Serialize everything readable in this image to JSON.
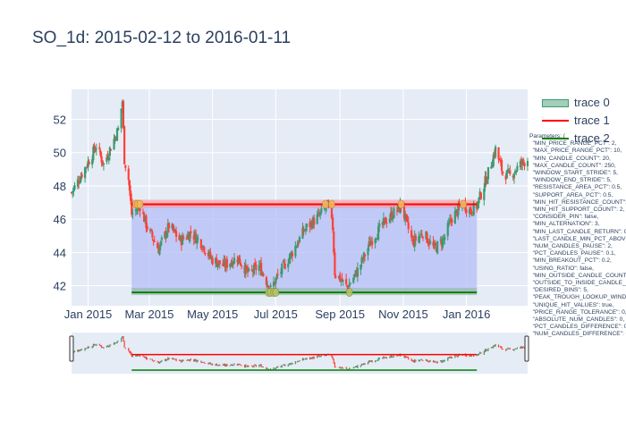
{
  "chart_data": {
    "type": "candlestick",
    "title": "SO_1d: 2015-02-12 to 2016-01-11",
    "y_tick_labels": [
      "42",
      "44",
      "46",
      "48",
      "50",
      "52"
    ],
    "y_ticks": [
      42,
      44,
      46,
      48,
      50,
      52
    ],
    "ylim": [
      40.8,
      53.8
    ],
    "x_tick_labels": [
      "Jan 2015",
      "Mar 2015",
      "May 2015",
      "Jul 2015",
      "Sep 2015",
      "Nov 2015",
      "Jan 2016"
    ],
    "x_ticks": [
      "2015-01-01",
      "2015-03-01",
      "2015-05-01",
      "2015-07-01",
      "2015-09-01",
      "2015-11-01",
      "2016-01-01"
    ],
    "xlim": [
      "2014-12-16",
      "2016-02-29"
    ],
    "grid": true,
    "legend_position": "top-right",
    "legend": [
      {
        "name": "trace 0",
        "color": "#3d9970"
      },
      {
        "name": "trace 1",
        "color": "#ff0000"
      },
      {
        "name": "trace 2",
        "color": "#008000"
      }
    ],
    "colors": {
      "increasing": "#3d9970",
      "decreasing": "#ff4136",
      "background": "#e5ecf6",
      "resistance": "#ff0000",
      "support": "#008000",
      "area": "#b4bef5",
      "marker": "#f2b76b"
    },
    "resistance_level": 46.9,
    "support_level": 41.6,
    "range_start": "2015-02-12",
    "range_end": "2016-01-11",
    "resistance_hits": [
      "2015-02-16",
      "2015-02-18",
      "2015-02-20",
      "2015-08-18",
      "2015-08-24",
      "2015-10-30",
      "2015-12-29"
    ],
    "support_hits": [
      "2015-06-24",
      "2015-06-26",
      "2015-06-29",
      "2015-07-01",
      "2015-09-10"
    ],
    "close_path": [
      [
        "2014-12-16",
        47.6
      ],
      [
        "2014-12-30",
        49.2
      ],
      [
        "2015-01-09",
        50.4
      ],
      [
        "2015-01-16",
        49.3
      ],
      [
        "2015-01-30",
        51.4
      ],
      [
        "2015-02-03",
        53.1
      ],
      [
        "2015-02-05",
        49.6
      ],
      [
        "2015-02-09",
        48.4
      ],
      [
        "2015-02-12",
        46.3
      ],
      [
        "2015-02-20",
        46.8
      ],
      [
        "2015-02-27",
        45.5
      ],
      [
        "2015-03-10",
        44.2
      ],
      [
        "2015-03-20",
        45.6
      ],
      [
        "2015-03-31",
        44.7
      ],
      [
        "2015-04-10",
        45.2
      ],
      [
        "2015-04-20",
        44.6
      ],
      [
        "2015-04-30",
        43.6
      ],
      [
        "2015-05-12",
        43.2
      ],
      [
        "2015-05-25",
        43.7
      ],
      [
        "2015-06-05",
        42.7
      ],
      [
        "2015-06-15",
        43.2
      ],
      [
        "2015-06-26",
        41.8
      ],
      [
        "2015-07-03",
        42.6
      ],
      [
        "2015-07-15",
        43.8
      ],
      [
        "2015-07-29",
        45.4
      ],
      [
        "2015-08-12",
        46.2
      ],
      [
        "2015-08-20",
        46.8
      ],
      [
        "2015-08-25",
        45.5
      ],
      [
        "2015-08-27",
        42.8
      ],
      [
        "2015-09-08",
        41.9
      ],
      [
        "2015-09-18",
        42.9
      ],
      [
        "2015-10-01",
        44.7
      ],
      [
        "2015-10-15",
        45.9
      ],
      [
        "2015-10-30",
        46.8
      ],
      [
        "2015-11-10",
        44.6
      ],
      [
        "2015-11-20",
        45.2
      ],
      [
        "2015-12-01",
        44.2
      ],
      [
        "2015-12-10",
        44.8
      ],
      [
        "2015-12-18",
        46.1
      ],
      [
        "2015-12-29",
        46.9
      ],
      [
        "2016-01-05",
        46.5
      ],
      [
        "2016-01-11",
        46.8
      ],
      [
        "2016-01-21",
        48.6
      ],
      [
        "2016-01-29",
        50.2
      ],
      [
        "2016-02-05",
        48.8
      ],
      [
        "2016-02-12",
        48.6
      ],
      [
        "2016-02-22",
        49.3
      ],
      [
        "2016-02-29",
        49.6
      ]
    ]
  },
  "legend": {
    "items": [
      {
        "label": "trace 0"
      },
      {
        "label": "trace 1"
      },
      {
        "label": "trace 2"
      }
    ]
  },
  "parameters_text": "Parameters: {\n  \"MIN_PRICE_RANGE_PCT\": 2,\n  \"MAX_PRICE_RANGE_PCT\": 10,\n  \"MIN_CANDLE_COUNT\": 20,\n  \"MAX_CANDLE_COUNT\": 250,\n  \"WINDOW_START_STRIDE\": 5,\n  \"WINDOW_END_STRIDE\": 5,\n  \"RESISTANCE_AREA_PCT\": 0.5,\n  \"SUPPORT_AREA_PCT\": 0.5,\n  \"MIN_HIT_RESISTANCE_COUNT\": 2,\n  \"MIN_HIT_SUPPORT_COUNT\": 2,\n  \"CONSIDER_PIN\": false,\n  \"MIN_ALTERNATION\": 3,\n  \"MIN_LAST_CANDLE_RETURN\": 0,\n  \"LAST_CANDLE_MIN_PCT_ABOVE\": 0,\n  \"NUM_CANDLES_PAUSE\": 2,\n  \"PCT_CANDLES_PAUSE\": 0.1,\n  \"MIN_BREAKOUT_PCT\": 0.2,\n  \"USING_RATIO\": false,\n  \"MIN_OUTSIDE_CANDLE_COUNT\": 0,\n  \"OUTSIDE_TO_INSIDE_CANDLE_RATIO\": 0,\n  \"DESIRED_BINS\": 5,\n  \"PEAK_TROUGH_LOOKUP_WINDOW\": 5,\n  \"UNIQUE_HIT_VALUES\": true,\n  \"PRICE_RANGE_TOLERANCE\": 0,\n  \"ABSOLUTE_NUM_CANDLES\": 0,\n  \"PCT_CANDLES_DIFFERENCE\": 0,\n  \"NUM_CANDLES_DIFFERENCE\": 0"
}
